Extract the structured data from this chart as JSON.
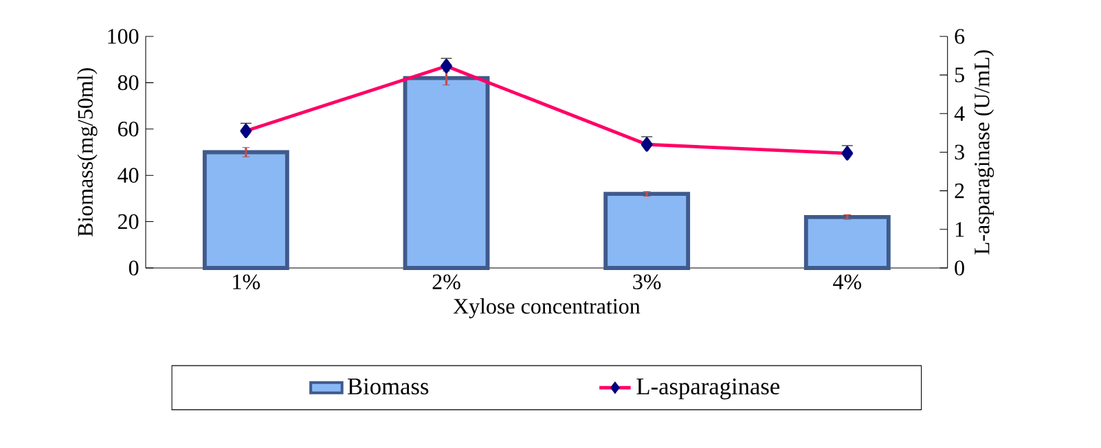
{
  "chart_data": {
    "type": "bar",
    "xlabel": "Xylose concentration",
    "ylabel": "Biomass(mg/50ml)",
    "y2label": "L-asparaginase (U/mL)",
    "categories": [
      "1%",
      "2%",
      "3%",
      "4%"
    ],
    "ylim": [
      0,
      100
    ],
    "yticks": [
      0,
      20,
      40,
      60,
      80,
      100
    ],
    "y2lim": [
      0,
      6
    ],
    "y2ticks": [
      0,
      1,
      2,
      3,
      4,
      5,
      6
    ],
    "legend": "bottom",
    "series": [
      {
        "name": "Biomass",
        "color": "#8ab8f5",
        "values": [
          50,
          82,
          32,
          22
        ],
        "errors": [
          2,
          3,
          1,
          1
        ]
      },
      {
        "name": "L-asparaginase",
        "type": "line",
        "axis": "y2",
        "color": "#ff0066",
        "marker": "diamond",
        "values": [
          3.55,
          5.23,
          3.2,
          2.97
        ],
        "errors": [
          0.2,
          0.2,
          0.2,
          0.2
        ]
      }
    ]
  }
}
